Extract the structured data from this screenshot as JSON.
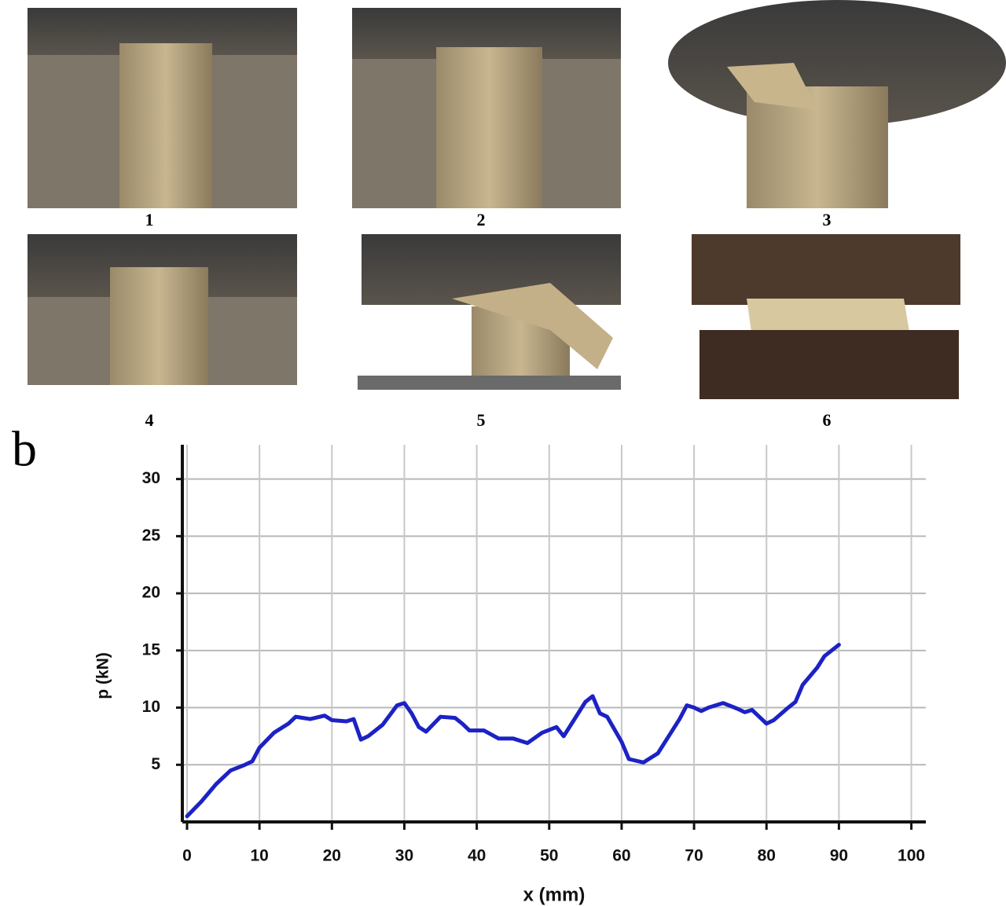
{
  "panels": [
    "1",
    "2",
    "3",
    "4",
    "5",
    "6"
  ],
  "panel_label": "b",
  "chart_data": {
    "type": "line",
    "x_label": "x (mm)",
    "y_label": "p (kN)",
    "xlim": [
      0,
      102
    ],
    "ylim": [
      0,
      33
    ],
    "xticks": [
      0,
      10,
      20,
      30,
      40,
      50,
      60,
      70,
      80,
      90,
      100
    ],
    "yticks": [
      5,
      10,
      15,
      20,
      25,
      30
    ],
    "grid": true,
    "series": [
      {
        "color": "#1c22c4",
        "x": [
          0,
          2,
          4,
          6,
          8,
          9,
          10,
          12,
          14,
          15,
          17,
          19,
          20,
          22,
          23,
          24,
          25,
          27,
          29,
          30,
          31,
          32,
          33,
          35,
          37,
          38,
          39,
          41,
          43,
          45,
          47,
          49,
          51,
          52,
          53,
          55,
          56,
          57,
          58,
          60,
          61,
          63,
          64,
          65,
          66,
          68,
          69,
          70,
          71,
          72,
          74,
          76,
          77,
          78,
          80,
          81,
          83,
          84,
          85,
          87,
          88,
          90
        ],
        "values": [
          0.5,
          1.8,
          3.3,
          4.5,
          5,
          5.3,
          6.5,
          7.8,
          8.6,
          9.2,
          9,
          9.3,
          8.9,
          8.8,
          9,
          7.2,
          7.5,
          8.5,
          10.2,
          10.4,
          9.5,
          8.3,
          7.9,
          9.2,
          9.1,
          8.6,
          8,
          8,
          7.3,
          7.3,
          6.9,
          7.8,
          8.3,
          7.5,
          8.5,
          10.5,
          11,
          9.5,
          9.2,
          7,
          5.5,
          5.2,
          5.6,
          6,
          7,
          9,
          10.2,
          10,
          9.7,
          10,
          10.4,
          9.9,
          9.6,
          9.8,
          8.6,
          8.9,
          10,
          10.5,
          12,
          13.5,
          14.5,
          15.5
        ]
      }
    ]
  }
}
